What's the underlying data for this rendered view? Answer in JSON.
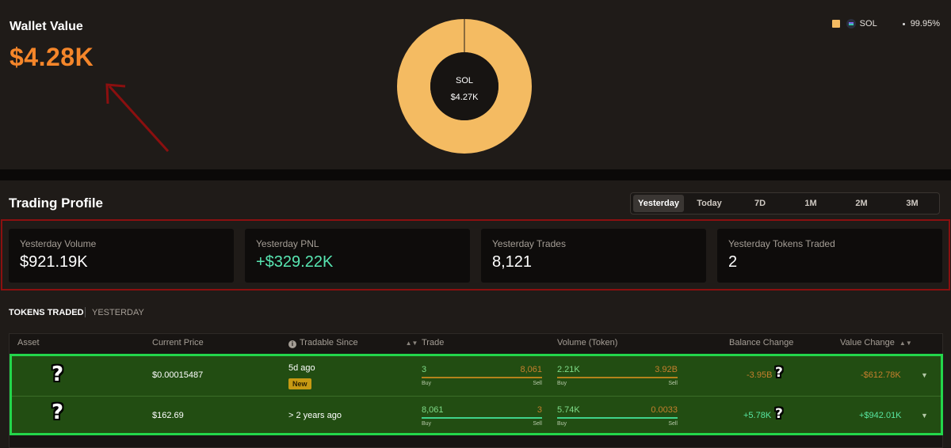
{
  "wallet": {
    "title": "Wallet Value",
    "value": "$4.28K",
    "donut_label": "SOL",
    "donut_value": "$4.27K",
    "legend": {
      "asset": "SOL",
      "percent": "99.95%",
      "swatch_color": "#f4bb62"
    }
  },
  "profile": {
    "title": "Trading Profile",
    "tabs": [
      "Yesterday",
      "Today",
      "7D",
      "1M",
      "2M",
      "3M"
    ],
    "active_tab": "Yesterday",
    "stats": [
      {
        "label": "Yesterday Volume",
        "value": "$921.19K"
      },
      {
        "label": "Yesterday PNL",
        "value": "+$329.22K"
      },
      {
        "label": "Yesterday Trades",
        "value": "8,121"
      },
      {
        "label": "Yesterday Tokens Traded",
        "value": "2"
      }
    ]
  },
  "tokens": {
    "title": "TOKENS TRADED",
    "period": "YESTERDAY",
    "headers": {
      "asset": "Asset",
      "price": "Current Price",
      "since": "Tradable Since",
      "trade": "Trade",
      "volume": "Volume (Token)",
      "balance": "Balance Change",
      "value": "Value Change"
    },
    "rows": [
      {
        "asset_icon": "?",
        "price": "$0.00015487",
        "since": "5d ago",
        "badge": "New",
        "trade_buy": "3",
        "trade_sell": "8,061",
        "trade_buy_fraction": 0.0004,
        "vol_buy": "2.21K",
        "vol_sell": "3.92B",
        "vol_buy_fraction": 0.0,
        "buy_label": "Buy",
        "sell_label": "Sell",
        "balance": "-3.95B",
        "value": "-$612.78K"
      },
      {
        "asset_icon": "?",
        "price": "$162.69",
        "since": "> 2 years ago",
        "trade_buy": "8,061",
        "trade_sell": "3",
        "trade_buy_fraction": 0.9996,
        "vol_buy": "5.74K",
        "vol_sell": "0.0033",
        "vol_buy_fraction": 0.9999,
        "buy_label": "Buy",
        "sell_label": "Sell",
        "balance": "+5.78K",
        "value": "+$942.01K"
      }
    ]
  },
  "colors": {
    "accent_orange": "#f5862a",
    "donut_fill": "#f4bb62",
    "positive": "#58e6b2",
    "highlight_red": "#8b1010",
    "highlight_green": "#23d64b"
  }
}
